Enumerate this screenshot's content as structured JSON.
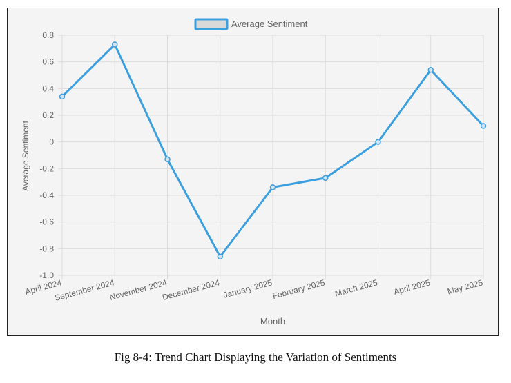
{
  "chart_data": {
    "type": "line",
    "categories": [
      "April 2024",
      "September 2024",
      "November 2024",
      "December 2024",
      "January 2025",
      "February 2025",
      "March 2025",
      "April 2025",
      "May 2025"
    ],
    "series": [
      {
        "name": "Average Sentiment",
        "values": [
          0.34,
          0.73,
          -0.13,
          -0.86,
          -0.34,
          -0.27,
          0.0,
          0.54,
          0.12
        ]
      }
    ],
    "xlabel": "Month",
    "ylabel": "Average Sentiment",
    "ylim": [
      -1.0,
      0.8
    ],
    "yticks": [
      "0.8",
      "0.6",
      "0.4",
      "0.2",
      "0",
      "-0.2",
      "-0.4",
      "-0.6",
      "-0.8",
      "-1.0"
    ],
    "grid": true,
    "legend": "top-center",
    "colors": {
      "line": "#3b9fe0",
      "legend_fill": "#d9d9d9",
      "grid": "#dcdcdc",
      "axis_text": "#666666"
    }
  },
  "caption": "Fig 8-4: Trend Chart Displaying the Variation of Sentiments"
}
